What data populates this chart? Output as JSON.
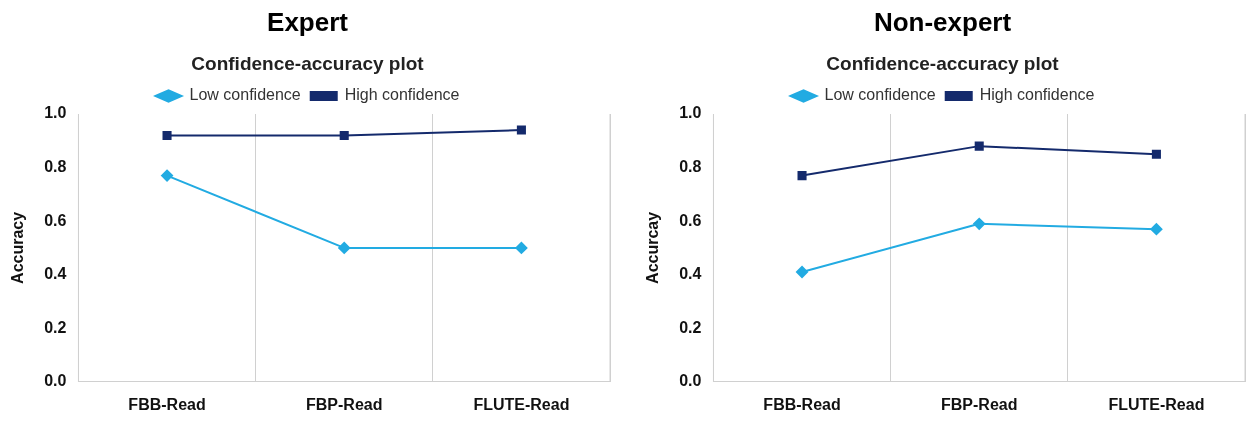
{
  "chart_data": [
    {
      "type": "line",
      "title": "Expert",
      "subtitle": "Confidence-accuracy plot",
      "ylabel": "Accuracy",
      "categories": [
        "FBB-Read",
        "FBP-Read",
        "FLUTE-Read"
      ],
      "series": [
        {
          "name": "Low confidence",
          "color": "#22abe2",
          "marker": "diamond",
          "values": [
            0.77,
            0.5,
            0.5
          ]
        },
        {
          "name": "High confidence",
          "color": "#142a6c",
          "marker": "square",
          "values": [
            0.92,
            0.92,
            0.94
          ]
        }
      ],
      "ylim": [
        0,
        1
      ],
      "yticks": [
        {
          "value": 0,
          "label": "0.0"
        },
        {
          "value": 0.2,
          "label": "0.2"
        },
        {
          "value": 0.4,
          "label": "0.4"
        },
        {
          "value": 0.6,
          "label": "0.6"
        },
        {
          "value": 0.8,
          "label": "0.8"
        },
        {
          "value": 1,
          "label": "1.0"
        }
      ],
      "grid": "x",
      "legend": "top",
      "line_style": "solid"
    },
    {
      "type": "line",
      "title": "Non-expert",
      "subtitle": "Confidence-accuracy plot",
      "ylabel": "Accurcay",
      "categories": [
        "FBB-Read",
        "FBP-Read",
        "FLUTE-Read"
      ],
      "series": [
        {
          "name": "Low confidence",
          "color": "#22abe2",
          "marker": "diamond",
          "values": [
            0.41,
            0.59,
            0.57
          ]
        },
        {
          "name": "High confidence",
          "color": "#142a6c",
          "marker": "square",
          "values": [
            0.77,
            0.88,
            0.85
          ]
        }
      ],
      "ylim": [
        0,
        1
      ],
      "yticks": [
        {
          "value": 0,
          "label": "0.0"
        },
        {
          "value": 0.2,
          "label": "0.2"
        },
        {
          "value": 0.4,
          "label": "0.4"
        },
        {
          "value": 0.6,
          "label": "0.6"
        },
        {
          "value": 0.8,
          "label": "0.8"
        },
        {
          "value": 1,
          "label": "1.0"
        }
      ],
      "grid": "x",
      "legend": "top",
      "line_style": "solid"
    }
  ]
}
